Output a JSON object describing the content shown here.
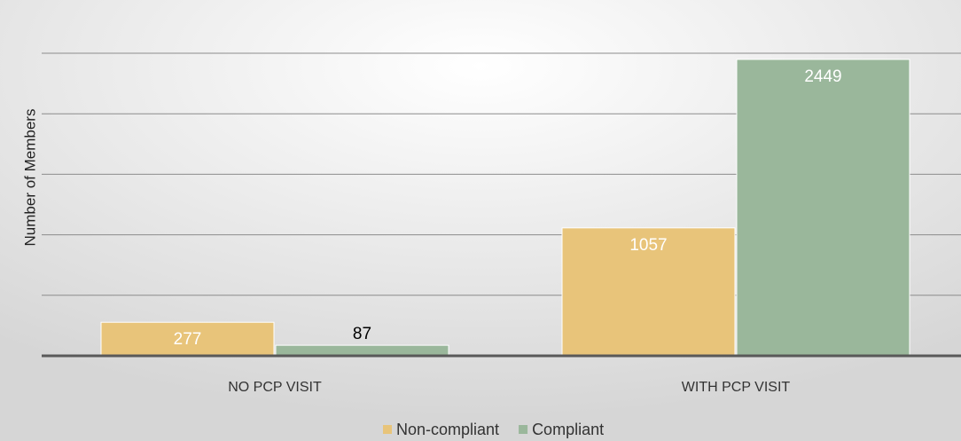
{
  "chart_data": {
    "type": "bar",
    "y_label": "Number of Members",
    "categories": [
      "NO PCP VISIT",
      "WITH PCP VISIT"
    ],
    "series": [
      {
        "name": "Non-compliant",
        "color": "#e8c47a",
        "values": [
          277,
          1057
        ]
      },
      {
        "name": "Compliant",
        "color": "#9ab79b",
        "values": [
          87,
          2449
        ]
      }
    ],
    "ylim": [
      0,
      2500
    ],
    "yticks": [
      0,
      500,
      1000,
      1500,
      2000,
      2500
    ],
    "grid": true,
    "show_ytick_labels": false,
    "legend": "bottom"
  }
}
